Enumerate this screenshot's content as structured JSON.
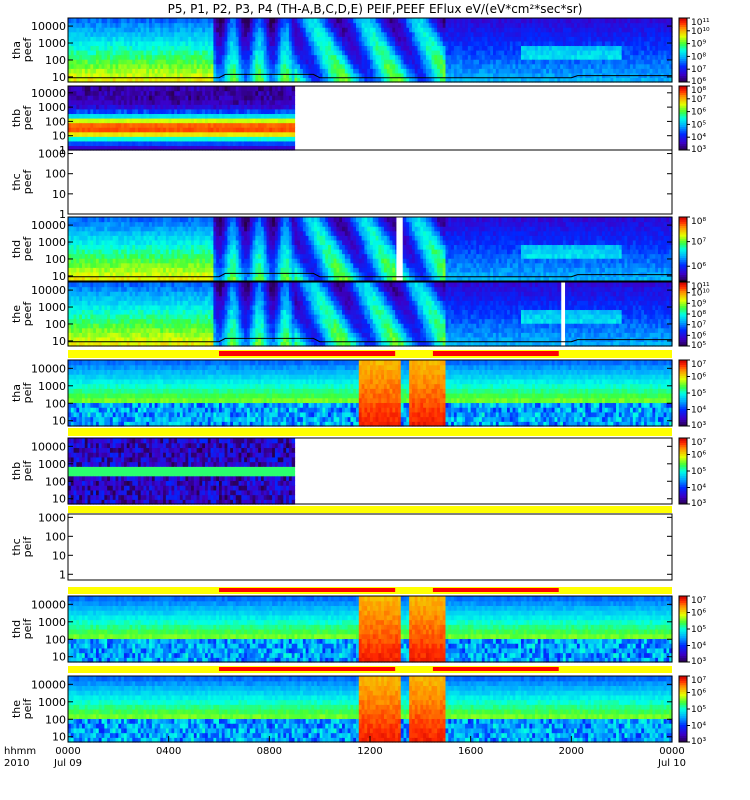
{
  "title": "P5, P1, P2, P3, P4 (TH-A,B,C,D,E) PEIF,PEEF EFlux eV/(eV*cm²*sec*sr)",
  "colors": {
    "frame": "#000000",
    "flag_on": "#ff0000",
    "flag_bar": "#ffff00",
    "potential_line": "#000000"
  },
  "colorbar_palette": [
    "#1a0033",
    "#3300aa",
    "#0022ff",
    "#0099ff",
    "#00ffff",
    "#00ff66",
    "#66ff00",
    "#ffff00",
    "#ffaa00",
    "#ff4400",
    "#cc0000"
  ],
  "x_axis": {
    "label_top": "hhmm",
    "label_bottom": "2010",
    "range_hours": [
      0,
      24
    ],
    "ticks": [
      {
        "hour": 0,
        "label": "0000",
        "sub": "Jul 09"
      },
      {
        "hour": 4,
        "label": "0400",
        "sub": ""
      },
      {
        "hour": 8,
        "label": "0800",
        "sub": ""
      },
      {
        "hour": 12,
        "label": "1200",
        "sub": ""
      },
      {
        "hour": 16,
        "label": "1600",
        "sub": ""
      },
      {
        "hour": 20,
        "label": "2000",
        "sub": ""
      },
      {
        "hour": 24,
        "label": "0000",
        "sub": "Jul 10"
      }
    ]
  },
  "chart_data": [
    {
      "type": "heatmap",
      "probe": "tha",
      "quantity": "peef",
      "ylabel": [
        "tha",
        "peef"
      ],
      "ylim": [
        5,
        30000
      ],
      "yscale": "log",
      "yticks": [
        10,
        100,
        1000,
        10000
      ],
      "ytick_labels": [
        "10",
        "100",
        "1000",
        "10000"
      ],
      "data_hours": [
        0,
        24
      ],
      "has_data": true,
      "potential_curve": true,
      "colorbar": {
        "min_exp": 6,
        "max_exp": 11,
        "tick_exps": [
          6,
          7,
          8,
          9,
          10,
          11
        ],
        "labels": [
          "10⁶",
          "10⁷",
          "10⁸",
          "10⁹",
          "10¹⁰",
          "10¹¹"
        ]
      }
    },
    {
      "type": "heatmap",
      "probe": "thb",
      "quantity": "peef",
      "ylabel": [
        "thb",
        "peef"
      ],
      "ylim": [
        1,
        30000
      ],
      "yscale": "log",
      "yticks": [
        1,
        10,
        100,
        1000,
        10000
      ],
      "ytick_labels": [
        "1",
        "10",
        "100",
        "1000",
        "10000"
      ],
      "data_hours": [
        0,
        9
      ],
      "has_data": true,
      "potential_curve": false,
      "colorbar": {
        "min_exp": 3,
        "max_exp": 8,
        "tick_exps": [
          3,
          4,
          5,
          6,
          7,
          8
        ],
        "labels": [
          "10³",
          "10⁴",
          "10⁵",
          "10⁶",
          "10⁷",
          "10⁸"
        ]
      }
    },
    {
      "type": "heatmap",
      "probe": "thc",
      "quantity": "peef",
      "ylabel": [
        "thc",
        "peef"
      ],
      "ylim": [
        1,
        1500
      ],
      "yscale": "log",
      "yticks": [
        1,
        10,
        100,
        1000
      ],
      "ytick_labels": [
        "1",
        "10",
        "100",
        "1000"
      ],
      "data_hours": null,
      "has_data": false,
      "potential_curve": false,
      "colorbar": null
    },
    {
      "type": "heatmap",
      "probe": "thd",
      "quantity": "peef",
      "ylabel": [
        "thd",
        "peef"
      ],
      "ylim": [
        5,
        30000
      ],
      "yscale": "log",
      "yticks": [
        10,
        100,
        1000,
        10000
      ],
      "ytick_labels": [
        "10",
        "100",
        "1000",
        "10000"
      ],
      "data_hours": [
        0,
        24
      ],
      "has_data": true,
      "potential_curve": true,
      "gap_hours": [
        [
          13.05,
          13.3
        ]
      ],
      "colorbar": {
        "min_exp": 5.4,
        "max_exp": 8,
        "tick_exps": [
          6,
          7,
          8
        ],
        "labels": [
          "10⁶",
          "10⁷",
          "10⁸"
        ]
      }
    },
    {
      "type": "heatmap",
      "probe": "the",
      "quantity": "peef",
      "ylabel": [
        "the",
        "peef"
      ],
      "ylim": [
        5,
        30000
      ],
      "yscale": "log",
      "yticks": [
        10,
        100,
        1000,
        10000
      ],
      "ytick_labels": [
        "10",
        "100",
        "1000",
        "10000"
      ],
      "data_hours": [
        0,
        24
      ],
      "has_data": true,
      "potential_curve": true,
      "gap_hours": [
        [
          19.6,
          19.75
        ]
      ],
      "colorbar": {
        "min_exp": 5,
        "max_exp": 11,
        "tick_exps": [
          5,
          6,
          7,
          8,
          9,
          10,
          11
        ],
        "labels": [
          "10⁵",
          "10⁶",
          "10⁷",
          "10⁸",
          "10⁹",
          "10¹⁰",
          "10¹¹"
        ]
      }
    },
    {
      "type": "heatmap",
      "probe": "tha",
      "quantity": "peif",
      "ylabel": [
        "tha",
        "peif"
      ],
      "ylim": [
        5,
        30000
      ],
      "yscale": "log",
      "yticks": [
        10,
        100,
        1000,
        10000
      ],
      "ytick_labels": [
        "10",
        "100",
        "1000",
        "10000"
      ],
      "data_hours": [
        0,
        24
      ],
      "has_data": true,
      "potential_curve": false,
      "flags_above": [
        [
          6,
          13
        ],
        [
          14.5,
          19.5
        ]
      ],
      "colorbar": {
        "min_exp": 3,
        "max_exp": 7,
        "tick_exps": [
          3,
          4,
          5,
          6,
          7
        ],
        "labels": [
          "10³",
          "10⁴",
          "10⁵",
          "10⁶",
          "10⁷"
        ]
      }
    },
    {
      "type": "heatmap",
      "probe": "thb",
      "quantity": "peif",
      "ylabel": [
        "thb",
        "peif"
      ],
      "ylim": [
        5,
        30000
      ],
      "yscale": "log",
      "yticks": [
        10,
        100,
        1000,
        10000
      ],
      "ytick_labels": [
        "10",
        "100",
        "1000",
        "10000"
      ],
      "data_hours": [
        0,
        9
      ],
      "has_data": true,
      "potential_curve": false,
      "flags_above": [],
      "colorbar": {
        "min_exp": 3,
        "max_exp": 7,
        "tick_exps": [
          3,
          4,
          5,
          6,
          7
        ],
        "labels": [
          "10³",
          "10⁴",
          "10⁵",
          "10⁶",
          "10⁷"
        ]
      }
    },
    {
      "type": "heatmap",
      "probe": "thc",
      "quantity": "peif",
      "ylabel": [
        "thc",
        "peif"
      ],
      "ylim": [
        0.5,
        1500
      ],
      "yscale": "log",
      "yticks": [
        1,
        10,
        100,
        1000
      ],
      "ytick_labels": [
        "1",
        "10",
        "100",
        "1000"
      ],
      "data_hours": null,
      "has_data": false,
      "potential_curve": false,
      "flags_above": [],
      "colorbar": null
    },
    {
      "type": "heatmap",
      "probe": "thd",
      "quantity": "peif",
      "ylabel": [
        "thd",
        "peif"
      ],
      "ylim": [
        5,
        30000
      ],
      "yscale": "log",
      "yticks": [
        10,
        100,
        1000,
        10000
      ],
      "ytick_labels": [
        "10",
        "100",
        "1000",
        "10000"
      ],
      "data_hours": [
        0,
        24
      ],
      "has_data": true,
      "potential_curve": false,
      "flags_above": [
        [
          6,
          13
        ],
        [
          14.5,
          19.5
        ]
      ],
      "colorbar": {
        "min_exp": 3,
        "max_exp": 7,
        "tick_exps": [
          3,
          4,
          5,
          6,
          7
        ],
        "labels": [
          "10³",
          "10⁴",
          "10⁵",
          "10⁶",
          "10⁷"
        ]
      }
    },
    {
      "type": "heatmap",
      "probe": "the",
      "quantity": "peif",
      "ylabel": [
        "the",
        "peif"
      ],
      "ylim": [
        5,
        30000
      ],
      "yscale": "log",
      "yticks": [
        10,
        100,
        1000,
        10000
      ],
      "ytick_labels": [
        "10",
        "100",
        "1000",
        "10000"
      ],
      "data_hours": [
        0,
        24
      ],
      "has_data": true,
      "potential_curve": false,
      "flags_above": [
        [
          6,
          13
        ],
        [
          14.5,
          19.5
        ]
      ],
      "colorbar": {
        "min_exp": 3,
        "max_exp": 7,
        "tick_exps": [
          3,
          4,
          5,
          6,
          7
        ],
        "labels": [
          "10³",
          "10⁴",
          "10⁵",
          "10⁶",
          "10⁷"
        ]
      }
    }
  ]
}
